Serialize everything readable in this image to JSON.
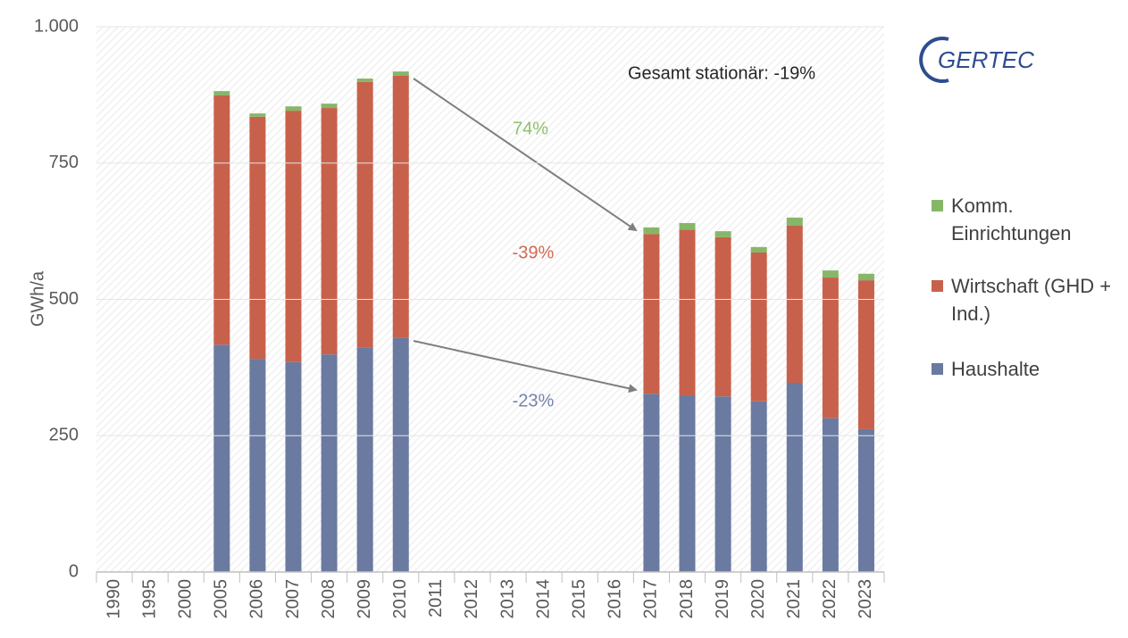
{
  "chart_data": {
    "type": "stacked_bar",
    "y_label": "GWh/a",
    "categories": [
      "1990",
      "1995",
      "2000",
      "2005",
      "2006",
      "2007",
      "2008",
      "2009",
      "2010",
      "2011",
      "2012",
      "2013",
      "2014",
      "2015",
      "2016",
      "2017",
      "2018",
      "2019",
      "2020",
      "2021",
      "2022",
      "2023"
    ],
    "series": [
      {
        "name": "Haushalte",
        "color": "#6a7aa0",
        "values": [
          null,
          null,
          null,
          417,
          391,
          385,
          399,
          411,
          429,
          null,
          null,
          null,
          null,
          null,
          null,
          327,
          324,
          322,
          313,
          347,
          282,
          262
        ]
      },
      {
        "name": "Wirtschaft (GHD + Ind.)",
        "color": "#c8614b",
        "values": [
          null,
          null,
          null,
          457,
          444,
          461,
          452,
          488,
          481,
          null,
          null,
          null,
          null,
          null,
          null,
          293,
          304,
          292,
          273,
          288,
          258,
          273
        ]
      },
      {
        "name": "Komm. Einrichtungen",
        "color": "#86b768",
        "values": [
          null,
          null,
          null,
          8,
          6,
          8,
          8,
          6,
          8,
          null,
          null,
          null,
          null,
          null,
          null,
          12,
          12,
          11,
          10,
          15,
          13,
          12
        ]
      }
    ],
    "ylim": [
      0,
      1000
    ],
    "yticks": [
      0,
      250,
      500,
      750,
      {
        "value": 1000,
        "label": "1.000"
      }
    ],
    "grid": true,
    "annotations": [
      {
        "text": "Gesamt stationär: -19%",
        "color": "#262626"
      },
      {
        "text": "74%",
        "color": "#8fc06e"
      },
      {
        "text": "-39%",
        "color": "#d06a55"
      },
      {
        "text": "-23%",
        "color": "#7585ad"
      }
    ],
    "logo": "GERTEC"
  }
}
